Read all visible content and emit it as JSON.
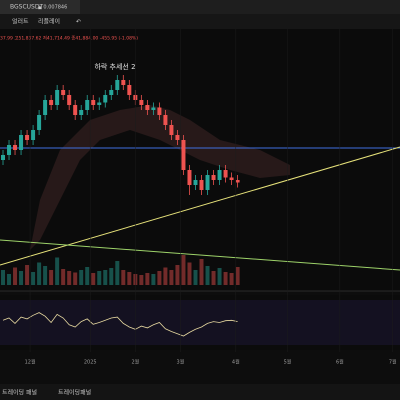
{
  "header": {
    "tab_symbol": "BGSCUSDT",
    "tab_price": "▲ 0.007846",
    "alert": "얼러트",
    "replay": "리플레이"
  },
  "ohlc_row": "37.99 고51,837.62 저41,714.49 종41,884.00 -455.95 (-1.08%)",
  "chart_data": {
    "type": "candlestick",
    "annotation": "하락 추세선 2",
    "up_color": "#26a69a",
    "down_color": "#ef5350",
    "candles": [
      [
        48,
        52,
        46,
        50
      ],
      [
        50,
        56,
        48,
        54
      ],
      [
        54,
        56,
        50,
        52
      ],
      [
        52,
        60,
        50,
        58
      ],
      [
        58,
        60,
        54,
        56
      ],
      [
        56,
        62,
        54,
        60
      ],
      [
        60,
        68,
        58,
        66
      ],
      [
        66,
        74,
        64,
        72
      ],
      [
        72,
        74,
        68,
        70
      ],
      [
        70,
        78,
        68,
        76
      ],
      [
        76,
        78,
        72,
        74
      ],
      [
        74,
        76,
        68,
        70
      ],
      [
        70,
        72,
        64,
        66
      ],
      [
        66,
        70,
        64,
        68
      ],
      [
        68,
        74,
        66,
        72
      ],
      [
        72,
        74,
        68,
        70
      ],
      [
        70,
        73,
        68,
        71
      ],
      [
        71,
        76,
        69,
        74
      ],
      [
        74,
        78,
        72,
        76
      ],
      [
        76,
        82,
        74,
        80
      ],
      [
        80,
        82,
        76,
        78
      ],
      [
        78,
        80,
        72,
        74
      ],
      [
        74,
        76,
        70,
        72
      ],
      [
        72,
        74,
        68,
        70
      ],
      [
        70,
        72,
        66,
        68
      ],
      [
        68,
        71,
        66,
        69
      ],
      [
        69,
        71,
        64,
        66
      ],
      [
        66,
        68,
        60,
        62
      ],
      [
        62,
        64,
        56,
        58
      ],
      [
        58,
        60,
        54,
        56
      ],
      [
        56,
        58,
        42,
        44
      ],
      [
        44,
        46,
        34,
        38
      ],
      [
        38,
        42,
        36,
        40
      ],
      [
        40,
        42,
        34,
        36
      ],
      [
        36,
        44,
        34,
        42
      ],
      [
        42,
        44,
        38,
        40
      ],
      [
        40,
        46,
        38,
        44
      ],
      [
        44,
        46,
        39,
        41
      ],
      [
        41,
        43,
        38,
        40
      ],
      [
        40,
        42,
        37,
        39
      ]
    ],
    "volume": [
      30,
      22,
      35,
      28,
      40,
      26,
      45,
      38,
      30,
      55,
      32,
      28,
      25,
      30,
      36,
      24,
      28,
      30,
      34,
      48,
      30,
      26,
      22,
      20,
      24,
      22,
      28,
      35,
      30,
      40,
      60,
      45,
      30,
      52,
      38,
      28,
      34,
      26,
      24,
      36
    ],
    "oscillator": [
      55,
      60,
      48,
      62,
      58,
      66,
      72,
      64,
      50,
      68,
      60,
      45,
      40,
      52,
      58,
      46,
      50,
      55,
      60,
      62,
      48,
      40,
      35,
      42,
      38,
      45,
      50,
      36,
      30,
      25,
      20,
      28,
      35,
      40,
      48,
      52,
      50,
      54,
      55,
      52
    ],
    "xlim": [
      -0.5,
      66
    ],
    "ylim": [
      0,
      100
    ],
    "volume_lim": [
      0,
      100
    ],
    "osc_lim": [
      0,
      100
    ],
    "xticks": [
      {
        "value": 4.5,
        "label": "12월"
      },
      {
        "value": 14.5,
        "label": "2025"
      },
      {
        "value": 22,
        "label": "2월"
      },
      {
        "value": 29.5,
        "label": "3월"
      },
      {
        "value": 38.7,
        "label": "4월"
      },
      {
        "value": 47.3,
        "label": "5월"
      },
      {
        "value": 56,
        "label": "6월"
      },
      {
        "value": 64.8,
        "label": "7월"
      }
    ],
    "hline": {
      "value": 52.8,
      "color": "#3f6fe0"
    },
    "trendlines": [
      {
        "start": [
          -0.5,
          6
        ],
        "end": [
          66,
          53.2
        ],
        "color": "#e6e27a"
      },
      {
        "start": [
          -0.5,
          16
        ],
        "end": [
          66,
          4
        ],
        "color": "#9ed36a"
      }
    ],
    "osc_color": "#e6d8a0"
  },
  "footer": {
    "panel1": "트레이딩 패널",
    "panel2": "트레이딩패널"
  }
}
